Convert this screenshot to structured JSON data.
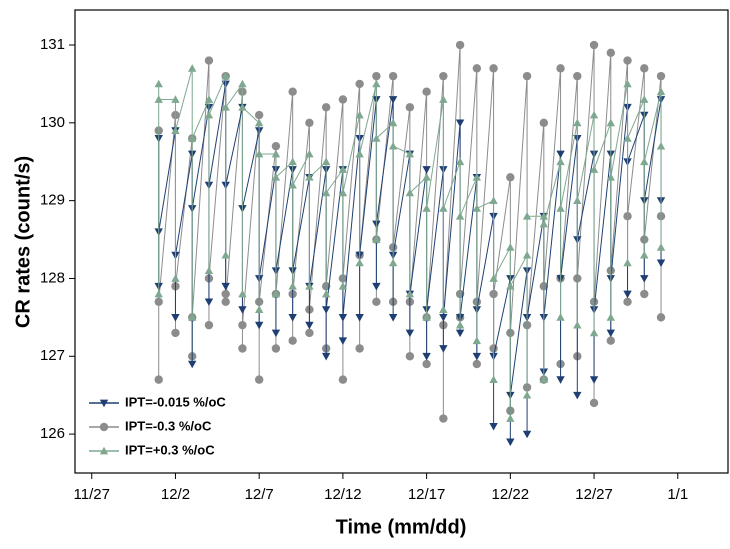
{
  "chart_data": {
    "type": "line",
    "x_label": "Time (mm/dd)",
    "y_label": "CR rates (count/s)",
    "xlim": [
      -1,
      38
    ],
    "ylim": [
      125.5,
      131.45
    ],
    "xticks": [
      {
        "value": 0,
        "label": "11/27"
      },
      {
        "value": 5,
        "label": "12/2"
      },
      {
        "value": 10,
        "label": "12/7"
      },
      {
        "value": 15,
        "label": "12/12"
      },
      {
        "value": 20,
        "label": "12/17"
      },
      {
        "value": 25,
        "label": "12/22"
      },
      {
        "value": 30,
        "label": "12/27"
      },
      {
        "value": 35,
        "label": "1/1"
      }
    ],
    "yticks": [
      126,
      127,
      128,
      129,
      130,
      131
    ],
    "legend": "bottom-left",
    "x": [
      4,
      4,
      4,
      5,
      5,
      5,
      6,
      6,
      6,
      7,
      7,
      7,
      8,
      8,
      8,
      9,
      9,
      9,
      10,
      10,
      10,
      11,
      11,
      11,
      12,
      12,
      12,
      13,
      13,
      13,
      14,
      14,
      14,
      15,
      15,
      15,
      16,
      16,
      16,
      17,
      17,
      17,
      18,
      18,
      18,
      19,
      19,
      19,
      20,
      20,
      20,
      21,
      21,
      21,
      22,
      22,
      22,
      23,
      23,
      23,
      24,
      24,
      24,
      25,
      25,
      25,
      26,
      26,
      26,
      27,
      27,
      27,
      28,
      28,
      28,
      29,
      29,
      29,
      30,
      30,
      30,
      31,
      31,
      31,
      32,
      32,
      32,
      33,
      33,
      33,
      34,
      34,
      34
    ],
    "series": [
      {
        "name": "IPT=-0.015 %/oC",
        "color": "#1f3f73",
        "marker": "triangle-down",
        "values": [
          129.8,
          127.9,
          128.6,
          129.9,
          127.5,
          128.3,
          129.6,
          126.9,
          128.9,
          130.2,
          127.7,
          129.2,
          130.5,
          127.9,
          129.2,
          130.2,
          127.6,
          128.9,
          129.9,
          127.4,
          128.0,
          129.4,
          127.3,
          128.1,
          129.4,
          127.5,
          128.1,
          129.3,
          127.4,
          127.9,
          129.4,
          127.0,
          127.6,
          129.4,
          127.2,
          127.5,
          129.8,
          127.5,
          128.3,
          130.3,
          127.9,
          128.7,
          130.3,
          127.5,
          128.3,
          129.6,
          127.3,
          127.8,
          129.4,
          127.0,
          127.6,
          129.4,
          127.1,
          127.5,
          130.0,
          127.3,
          127.5,
          129.3,
          127.0,
          127.6,
          128.8,
          126.1,
          127.0,
          128.0,
          125.9,
          126.5,
          128.1,
          126.0,
          127.5,
          128.8,
          126.8,
          127.5,
          129.6,
          126.7,
          128.0,
          129.8,
          126.5,
          128.5,
          129.6,
          126.7,
          127.6,
          129.6,
          127.3,
          128.0,
          130.2,
          127.8,
          129.5,
          130.1,
          128.0,
          129.0,
          130.3,
          128.2,
          129.0
        ]
      },
      {
        "name": "IPT=-0.3 %/oC",
        "color": "#8c8c8c",
        "marker": "circle",
        "values": [
          129.9,
          126.7,
          127.7,
          130.1,
          127.3,
          127.9,
          129.8,
          127.0,
          127.5,
          130.8,
          127.4,
          128.0,
          130.6,
          127.8,
          127.7,
          130.4,
          127.1,
          127.4,
          130.1,
          126.7,
          127.7,
          129.7,
          127.1,
          127.8,
          130.4,
          127.2,
          127.8,
          130.0,
          127.3,
          127.6,
          130.2,
          127.1,
          127.9,
          130.3,
          126.7,
          128.0,
          130.5,
          127.1,
          128.3,
          130.6,
          127.7,
          128.5,
          130.6,
          127.7,
          128.4,
          130.2,
          127.0,
          127.7,
          130.4,
          126.9,
          127.5,
          130.6,
          126.2,
          127.4,
          131.0,
          127.5,
          127.8,
          130.7,
          126.9,
          127.7,
          130.7,
          127.1,
          127.8,
          129.3,
          126.3,
          127.3,
          130.6,
          126.6,
          127.4,
          130.0,
          126.7,
          127.9,
          130.7,
          126.9,
          128.0,
          130.6,
          127.0,
          128.0,
          131.0,
          126.4,
          127.7,
          130.9,
          127.2,
          128.1,
          130.8,
          127.7,
          128.8,
          130.7,
          127.8,
          128.5,
          130.6,
          127.5,
          128.8
        ]
      },
      {
        "name": "IPT=+0.3 %/oC",
        "color": "#7fa890",
        "marker": "triangle-up",
        "values": [
          130.5,
          127.8,
          130.3,
          130.3,
          128.0,
          129.9,
          130.7,
          127.5,
          129.8,
          130.3,
          128.1,
          130.1,
          130.6,
          128.3,
          130.2,
          130.5,
          127.8,
          130.2,
          130.0,
          127.6,
          129.6,
          129.6,
          127.8,
          129.3,
          129.5,
          127.9,
          129.2,
          129.6,
          127.9,
          129.3,
          129.5,
          127.8,
          129.1,
          129.4,
          127.9,
          129.1,
          130.1,
          128.2,
          129.6,
          130.5,
          128.5,
          129.8,
          130.0,
          128.2,
          129.7,
          129.6,
          127.8,
          129.1,
          129.3,
          127.5,
          128.9,
          130.3,
          127.6,
          128.9,
          129.5,
          127.4,
          128.8,
          129.3,
          127.2,
          128.9,
          129.0,
          126.7,
          128.0,
          128.4,
          126.2,
          127.9,
          128.3,
          126.5,
          128.8,
          128.8,
          126.7,
          128.7,
          129.5,
          127.5,
          128.9,
          130.0,
          127.4,
          129.0,
          130.1,
          127.3,
          129.4,
          130.0,
          127.5,
          129.3,
          130.5,
          128.2,
          129.8,
          130.3,
          128.3,
          129.5,
          130.4,
          128.4,
          129.7
        ]
      }
    ]
  }
}
